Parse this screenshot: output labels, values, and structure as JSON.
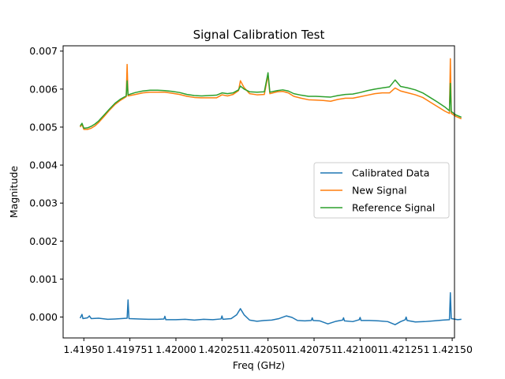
{
  "chart_data": {
    "type": "line",
    "title": "Signal Calibration Test",
    "xlabel": "Freq (GHz)",
    "ylabel": "Magnitude",
    "xlim": [
      1.4193875,
      1.4215125
    ],
    "ylim": [
      -0.00055,
      0.00714
    ],
    "x_ticks": [
      "1.41950",
      "1.419751",
      "1.42000",
      "1.420251",
      "1.420501",
      "1.420751",
      "1.421001",
      "1.421251",
      "1.42150"
    ],
    "x_tick_values": [
      1.4195,
      1.41975,
      1.42,
      1.42025,
      1.4205,
      1.42075,
      1.421,
      1.42125,
      1.4215
    ],
    "y_ticks": [
      "0.000",
      "0.001",
      "0.002",
      "0.003",
      "0.004",
      "0.005",
      "0.006",
      "0.007"
    ],
    "y_tick_values": [
      0.0,
      0.001,
      0.002,
      0.003,
      0.004,
      0.005,
      0.006,
      0.007
    ],
    "grid": false,
    "legend_position": "center-right",
    "series": [
      {
        "name": "Calibrated Data",
        "color": "#1f77b4",
        "points": [
          [
            1.41948,
            -3e-05
          ],
          [
            1.41949,
            7e-05
          ],
          [
            1.419495,
            -4e-05
          ],
          [
            1.41952,
            -2e-05
          ],
          [
            1.41953,
            3e-05
          ],
          [
            1.41954,
            -4e-05
          ],
          [
            1.41958,
            -3e-05
          ],
          [
            1.41963,
            -6e-05
          ],
          [
            1.41967,
            -5e-05
          ],
          [
            1.419735,
            -3e-05
          ],
          [
            1.41974,
            0.00045
          ],
          [
            1.419745,
            -4e-05
          ],
          [
            1.4198,
            -5e-05
          ],
          [
            1.41985,
            -6e-05
          ],
          [
            1.4199,
            -6e-05
          ],
          [
            1.419935,
            -5e-05
          ],
          [
            1.41994,
            2e-05
          ],
          [
            1.419945,
            -7e-05
          ],
          [
            1.42,
            -7e-05
          ],
          [
            1.42005,
            -6e-05
          ],
          [
            1.4201,
            -8e-05
          ],
          [
            1.42015,
            -6e-05
          ],
          [
            1.4202,
            -7e-05
          ],
          [
            1.420245,
            -5e-05
          ],
          [
            1.42025,
            3e-05
          ],
          [
            1.420255,
            -6e-05
          ],
          [
            1.4203,
            -4e-05
          ],
          [
            1.42033,
            6e-05
          ],
          [
            1.42035,
            0.00022
          ],
          [
            1.42037,
            6e-05
          ],
          [
            1.4204,
            -8e-05
          ],
          [
            1.42044,
            -0.00011
          ],
          [
            1.42048,
            -9e-05
          ],
          [
            1.42052,
            -8e-05
          ],
          [
            1.42056,
            -4e-05
          ],
          [
            1.4206,
            3e-05
          ],
          [
            1.42063,
            -1e-05
          ],
          [
            1.42066,
            -9e-05
          ],
          [
            1.4207,
            -0.0001
          ],
          [
            1.420735,
            -9e-05
          ],
          [
            1.42074,
            -2e-05
          ],
          [
            1.420745,
            -9e-05
          ],
          [
            1.42078,
            -0.0001
          ],
          [
            1.420825,
            -0.00018
          ],
          [
            1.42087,
            -0.00011
          ],
          [
            1.420905,
            -8e-05
          ],
          [
            1.42091,
            -2e-05
          ],
          [
            1.420915,
            -0.0001
          ],
          [
            1.42096,
            -0.00012
          ],
          [
            1.420995,
            -7e-05
          ],
          [
            1.421,
            -1e-05
          ],
          [
            1.421005,
            -9e-05
          ],
          [
            1.42105,
            -9e-05
          ],
          [
            1.4211,
            -0.0001
          ],
          [
            1.42115,
            -0.00012
          ],
          [
            1.42119,
            -0.0002
          ],
          [
            1.42122,
            -0.00012
          ],
          [
            1.421245,
            -7e-05
          ],
          [
            1.42125,
            0.0
          ],
          [
            1.421255,
            -9e-05
          ],
          [
            1.4213,
            -0.00013
          ],
          [
            1.42135,
            -0.00012
          ],
          [
            1.4214,
            -0.0001
          ],
          [
            1.42145,
            -8e-05
          ],
          [
            1.421485,
            -7e-05
          ],
          [
            1.42149,
            0.00064
          ],
          [
            1.421495,
            -4e-05
          ],
          [
            1.42153,
            -7e-05
          ],
          [
            1.42155,
            -6e-05
          ]
        ]
      },
      {
        "name": "New Signal",
        "color": "#ff7f0e",
        "points": [
          [
            1.41948,
            0.005
          ],
          [
            1.41949,
            0.00507
          ],
          [
            1.4195,
            0.00494
          ],
          [
            1.41952,
            0.00494
          ],
          [
            1.41954,
            0.00497
          ],
          [
            1.41956,
            0.00503
          ],
          [
            1.41958,
            0.00512
          ],
          [
            1.41961,
            0.00528
          ],
          [
            1.41964,
            0.00545
          ],
          [
            1.41967,
            0.0056
          ],
          [
            1.4197,
            0.00571
          ],
          [
            1.41973,
            0.0058
          ],
          [
            1.419735,
            0.00665
          ],
          [
            1.41974,
            0.00582
          ],
          [
            1.41978,
            0.00586
          ],
          [
            1.41982,
            0.0059
          ],
          [
            1.41986,
            0.00592
          ],
          [
            1.4199,
            0.00592
          ],
          [
            1.41994,
            0.00592
          ],
          [
            1.41998,
            0.00589
          ],
          [
            1.42002,
            0.00586
          ],
          [
            1.42006,
            0.00581
          ],
          [
            1.4201,
            0.00578
          ],
          [
            1.42014,
            0.00577
          ],
          [
            1.42018,
            0.00577
          ],
          [
            1.42022,
            0.00577
          ],
          [
            1.42025,
            0.00585
          ],
          [
            1.42028,
            0.00582
          ],
          [
            1.42031,
            0.00586
          ],
          [
            1.42034,
            0.00596
          ],
          [
            1.42035,
            0.00622
          ],
          [
            1.42037,
            0.00604
          ],
          [
            1.4204,
            0.00588
          ],
          [
            1.42044,
            0.00585
          ],
          [
            1.42048,
            0.00586
          ],
          [
            1.4205,
            0.00637
          ],
          [
            1.42051,
            0.00588
          ],
          [
            1.42055,
            0.00593
          ],
          [
            1.42058,
            0.00594
          ],
          [
            1.42061,
            0.0059
          ],
          [
            1.42064,
            0.00581
          ],
          [
            1.42068,
            0.00576
          ],
          [
            1.42072,
            0.00572
          ],
          [
            1.42076,
            0.00571
          ],
          [
            1.4208,
            0.0057
          ],
          [
            1.42084,
            0.00568
          ],
          [
            1.42088,
            0.00573
          ],
          [
            1.42092,
            0.00576
          ],
          [
            1.42096,
            0.00576
          ],
          [
            1.421,
            0.0058
          ],
          [
            1.42104,
            0.00584
          ],
          [
            1.42108,
            0.00588
          ],
          [
            1.42112,
            0.0059
          ],
          [
            1.42116,
            0.0059
          ],
          [
            1.42119,
            0.00603
          ],
          [
            1.42122,
            0.00595
          ],
          [
            1.42126,
            0.0059
          ],
          [
            1.4213,
            0.00585
          ],
          [
            1.42134,
            0.00578
          ],
          [
            1.42138,
            0.00566
          ],
          [
            1.42142,
            0.00554
          ],
          [
            1.42146,
            0.00542
          ],
          [
            1.421485,
            0.00536
          ],
          [
            1.42149,
            0.0068
          ],
          [
            1.421495,
            0.00536
          ],
          [
            1.42152,
            0.00528
          ],
          [
            1.42155,
            0.00522
          ]
        ]
      },
      {
        "name": "Reference Signal",
        "color": "#2ca02c",
        "points": [
          [
            1.41948,
            0.00503
          ],
          [
            1.41949,
            0.0051
          ],
          [
            1.4195,
            0.00497
          ],
          [
            1.41952,
            0.00498
          ],
          [
            1.41954,
            0.00502
          ],
          [
            1.41956,
            0.00508
          ],
          [
            1.41958,
            0.00516
          ],
          [
            1.41961,
            0.00532
          ],
          [
            1.41964,
            0.00548
          ],
          [
            1.41967,
            0.00563
          ],
          [
            1.4197,
            0.00574
          ],
          [
            1.41973,
            0.00582
          ],
          [
            1.419735,
            0.00622
          ],
          [
            1.41974,
            0.00585
          ],
          [
            1.41978,
            0.00591
          ],
          [
            1.41982,
            0.00595
          ],
          [
            1.41986,
            0.00597
          ],
          [
            1.4199,
            0.00597
          ],
          [
            1.41994,
            0.00596
          ],
          [
            1.41998,
            0.00594
          ],
          [
            1.42002,
            0.00591
          ],
          [
            1.42006,
            0.00586
          ],
          [
            1.4201,
            0.00583
          ],
          [
            1.42014,
            0.00582
          ],
          [
            1.42018,
            0.00583
          ],
          [
            1.42022,
            0.00584
          ],
          [
            1.42025,
            0.0059
          ],
          [
            1.42028,
            0.00588
          ],
          [
            1.42031,
            0.0059
          ],
          [
            1.42034,
            0.00598
          ],
          [
            1.42035,
            0.00608
          ],
          [
            1.42037,
            0.006
          ],
          [
            1.4204,
            0.00593
          ],
          [
            1.42044,
            0.00592
          ],
          [
            1.42048,
            0.00593
          ],
          [
            1.4205,
            0.00643
          ],
          [
            1.42051,
            0.00592
          ],
          [
            1.42055,
            0.00596
          ],
          [
            1.42058,
            0.00598
          ],
          [
            1.42061,
            0.00595
          ],
          [
            1.42064,
            0.00588
          ],
          [
            1.42068,
            0.00584
          ],
          [
            1.42072,
            0.00581
          ],
          [
            1.42076,
            0.00581
          ],
          [
            1.4208,
            0.0058
          ],
          [
            1.42084,
            0.00579
          ],
          [
            1.42088,
            0.00583
          ],
          [
            1.42092,
            0.00586
          ],
          [
            1.42096,
            0.00587
          ],
          [
            1.421,
            0.00591
          ],
          [
            1.42104,
            0.00596
          ],
          [
            1.42108,
            0.006
          ],
          [
            1.42112,
            0.00603
          ],
          [
            1.42116,
            0.00606
          ],
          [
            1.42119,
            0.00624
          ],
          [
            1.42122,
            0.00607
          ],
          [
            1.42126,
            0.00603
          ],
          [
            1.4213,
            0.00598
          ],
          [
            1.42134,
            0.0059
          ],
          [
            1.42138,
            0.00578
          ],
          [
            1.42142,
            0.00566
          ],
          [
            1.42146,
            0.00553
          ],
          [
            1.421485,
            0.00543
          ],
          [
            1.42149,
            0.00615
          ],
          [
            1.421495,
            0.00541
          ],
          [
            1.42152,
            0.00532
          ],
          [
            1.42155,
            0.00526
          ]
        ]
      }
    ]
  }
}
